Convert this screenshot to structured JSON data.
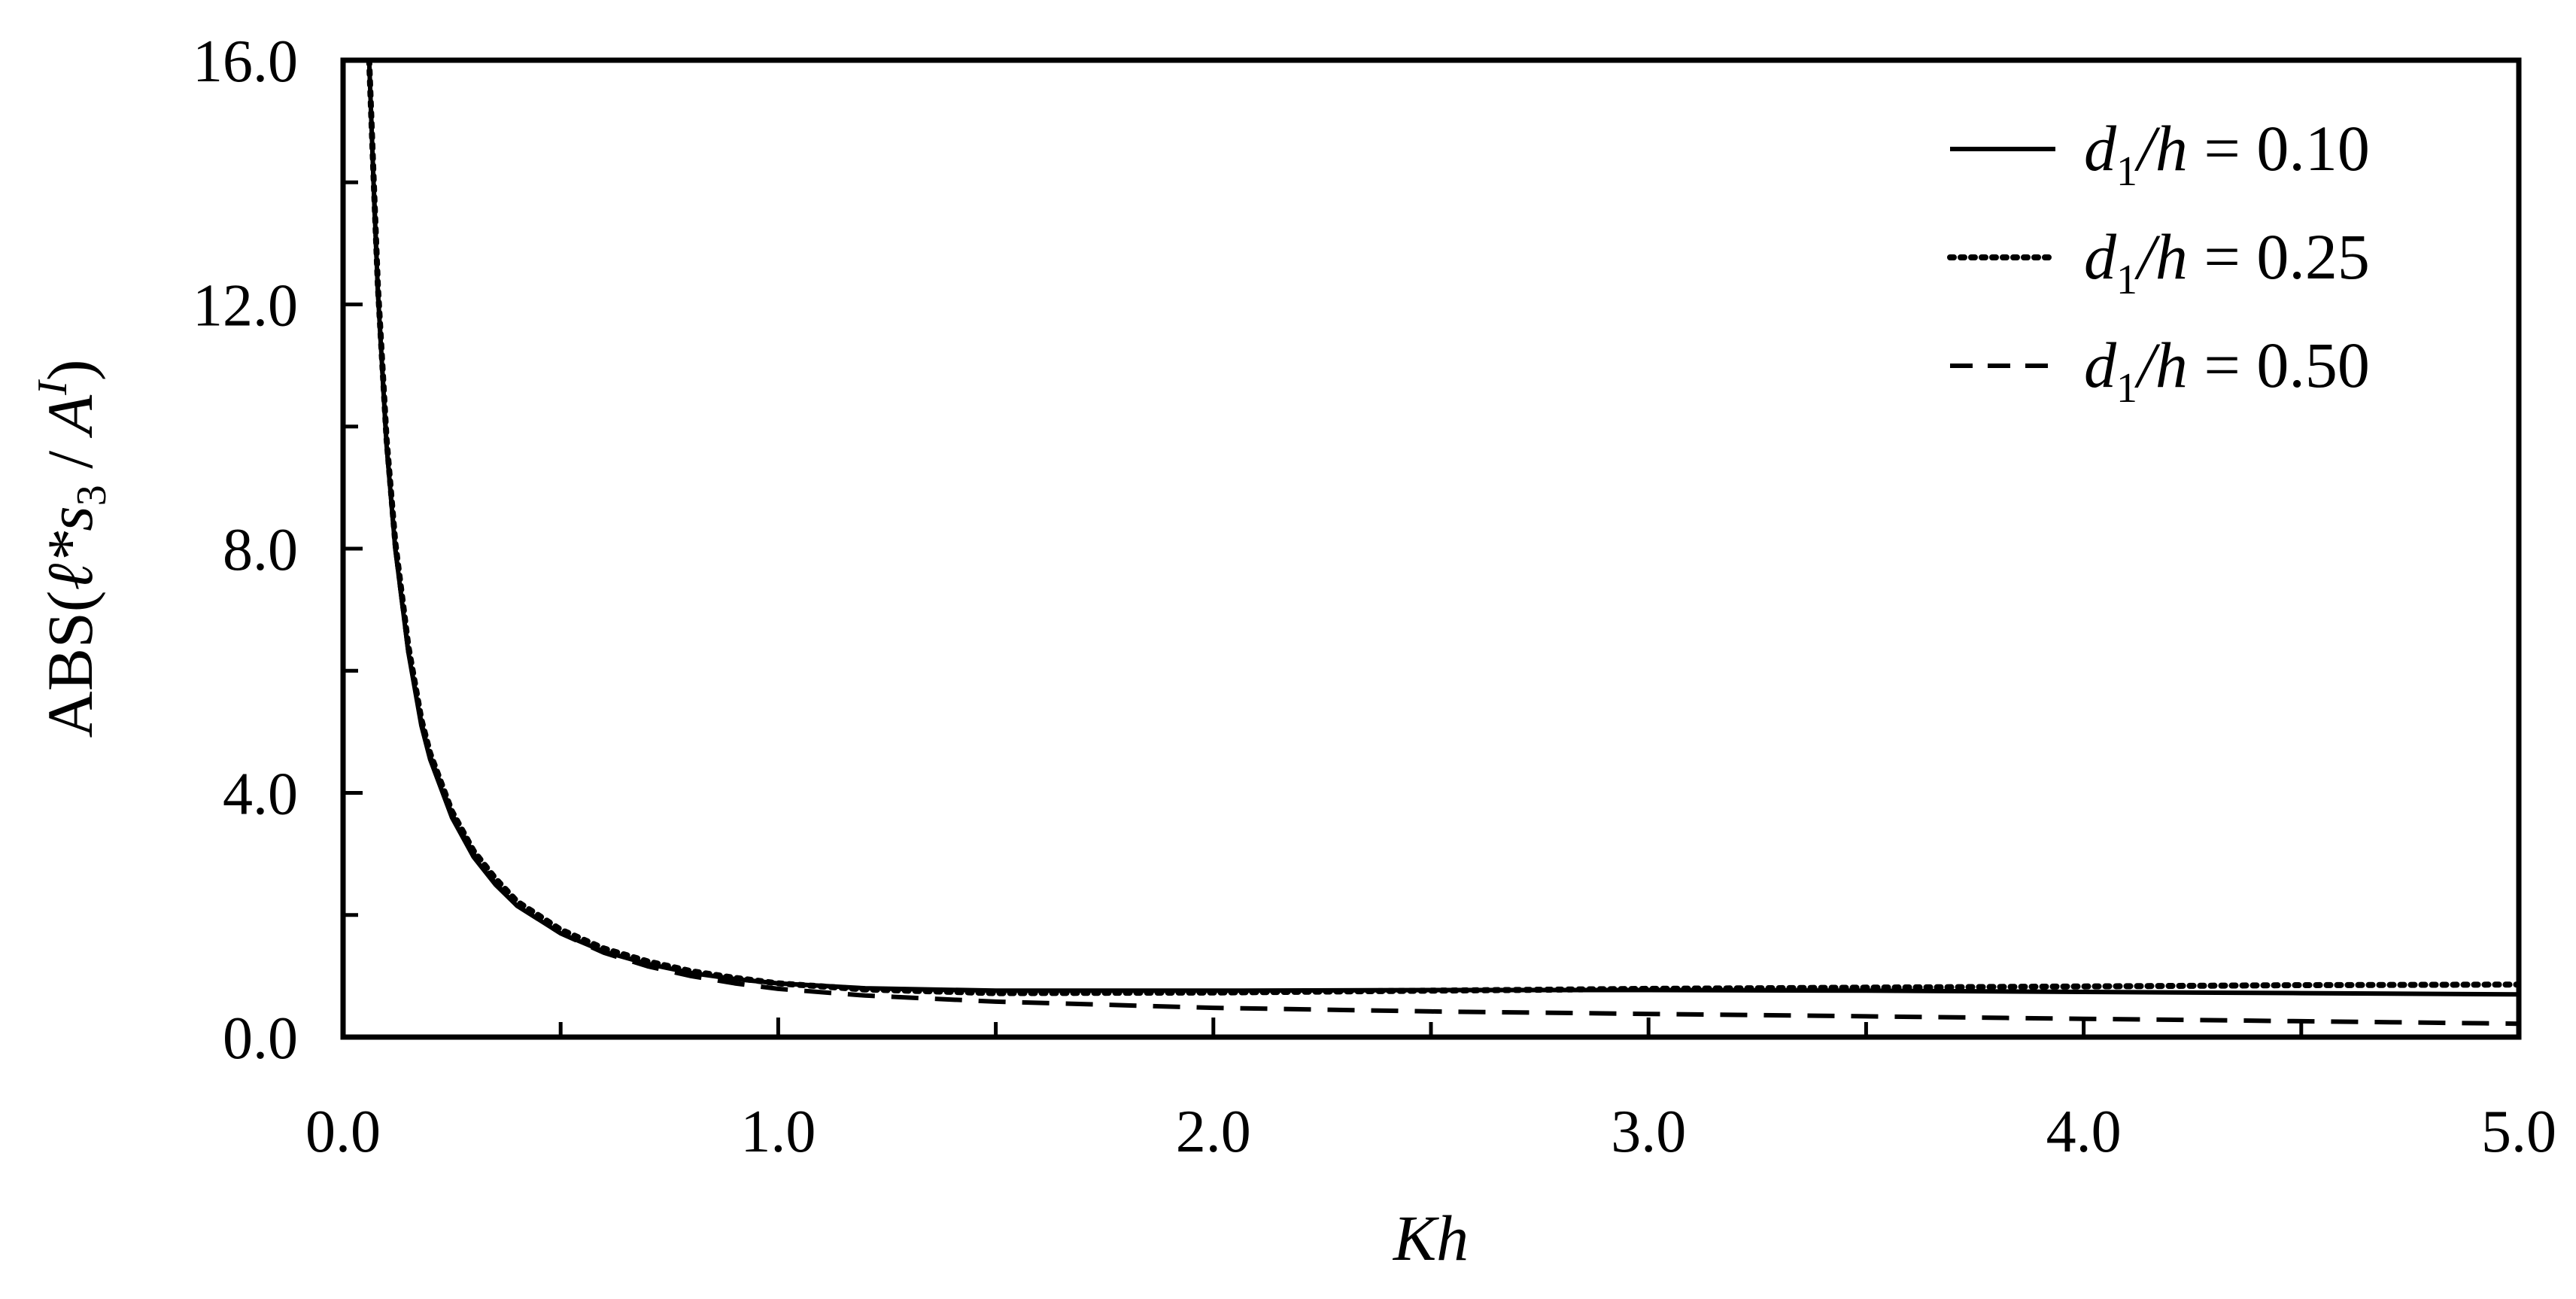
{
  "chart_data": {
    "type": "line",
    "xlabel": "Kh",
    "ylabel": {
      "prefix": "ABS(",
      "script_l": "ℓ",
      "star_s": "*s",
      "sub": "3",
      "slash": " / ",
      "A": "A",
      "sup": "I",
      "suffix": ")"
    },
    "xlim": [
      0.0,
      5.0
    ],
    "ylim": [
      0.0,
      16.0
    ],
    "x_ticks": [
      "0.0",
      "1.0",
      "2.0",
      "3.0",
      "4.0",
      "5.0"
    ],
    "x_tick_values": [
      0,
      1,
      2,
      3,
      4,
      5
    ],
    "x_minor_ticks": [
      0.5,
      1.5,
      2.5,
      3.5,
      4.5
    ],
    "y_ticks": [
      "0.0",
      "4.0",
      "8.0",
      "12.0",
      "16.0"
    ],
    "y_tick_values": [
      0,
      4,
      8,
      12,
      16
    ],
    "y_minor_ticks": [
      2,
      6,
      10,
      14
    ],
    "grid": false,
    "legend_position": "top-right",
    "series": [
      {
        "name": "d1/h = 0.10",
        "label": {
          "d": "d",
          "sub": "1",
          "rest": "/h",
          "eq": " = 0.10"
        },
        "style": "solid",
        "x": [
          0.06,
          0.07,
          0.08,
          0.1,
          0.12,
          0.15,
          0.18,
          0.2,
          0.25,
          0.3,
          0.35,
          0.4,
          0.5,
          0.6,
          0.7,
          0.8,
          0.9,
          1.0,
          1.2,
          1.5,
          2.0,
          2.5,
          3.0,
          3.5,
          4.0,
          4.5,
          5.0
        ],
        "values": [
          16.0,
          14.0,
          12.2,
          9.7,
          8.0,
          6.3,
          5.1,
          4.55,
          3.6,
          2.95,
          2.5,
          2.15,
          1.7,
          1.4,
          1.2,
          1.05,
          0.95,
          0.88,
          0.8,
          0.76,
          0.76,
          0.77,
          0.77,
          0.76,
          0.74,
          0.72,
          0.7
        ]
      },
      {
        "name": "d1/h = 0.25",
        "label": {
          "d": "d",
          "sub": "1",
          "rest": "/h",
          "eq": " = 0.25"
        },
        "style": "dotted",
        "x": [
          0.06,
          0.07,
          0.08,
          0.1,
          0.12,
          0.15,
          0.18,
          0.2,
          0.25,
          0.3,
          0.35,
          0.4,
          0.5,
          0.6,
          0.7,
          0.8,
          0.9,
          1.0,
          1.2,
          1.5,
          2.0,
          2.5,
          3.0,
          3.5,
          4.0,
          4.5,
          5.0
        ],
        "values": [
          16.0,
          14.1,
          12.3,
          9.8,
          8.1,
          6.4,
          5.2,
          4.65,
          3.7,
          3.05,
          2.6,
          2.22,
          1.76,
          1.45,
          1.24,
          1.08,
          0.97,
          0.88,
          0.78,
          0.72,
          0.73,
          0.76,
          0.79,
          0.81,
          0.83,
          0.85,
          0.86
        ]
      },
      {
        "name": "d1/h = 0.50",
        "label": {
          "d": "d",
          "sub": "1",
          "rest": "/h",
          "eq": " = 0.50"
        },
        "style": "dashed",
        "x": [
          0.06,
          0.07,
          0.08,
          0.1,
          0.12,
          0.15,
          0.18,
          0.2,
          0.25,
          0.3,
          0.35,
          0.4,
          0.5,
          0.6,
          0.7,
          0.8,
          0.9,
          1.0,
          1.2,
          1.5,
          2.0,
          2.5,
          3.0,
          3.5,
          4.0,
          4.5,
          5.0
        ],
        "values": [
          16.0,
          14.0,
          12.2,
          9.7,
          8.0,
          6.3,
          5.15,
          4.6,
          3.65,
          3.0,
          2.52,
          2.15,
          1.7,
          1.38,
          1.16,
          1.0,
          0.88,
          0.79,
          0.68,
          0.58,
          0.48,
          0.42,
          0.38,
          0.34,
          0.3,
          0.26,
          0.22
        ]
      }
    ]
  }
}
